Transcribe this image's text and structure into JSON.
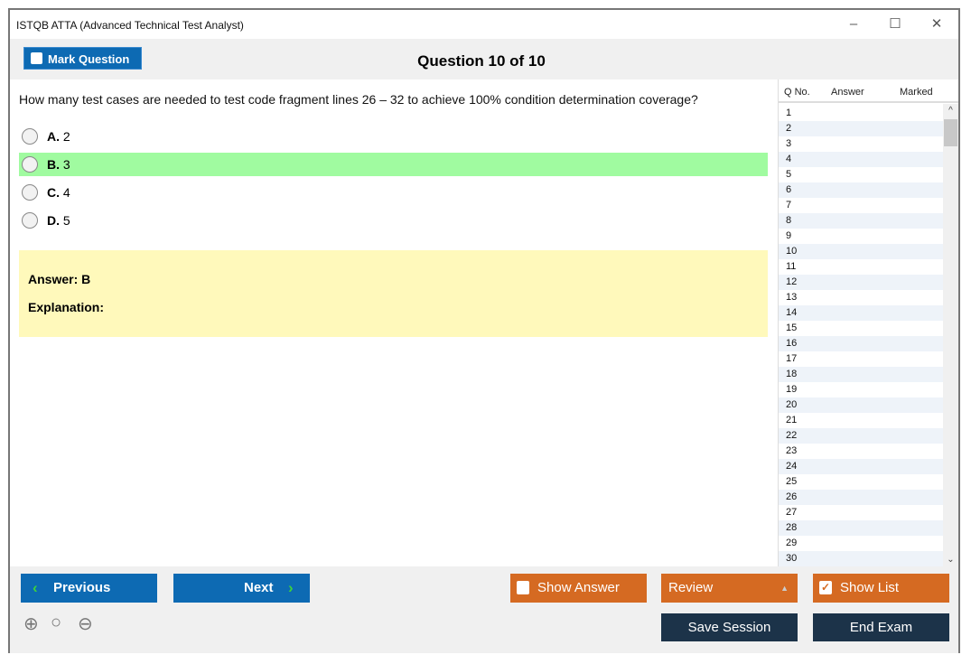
{
  "window": {
    "title": "ISTQB ATTA (Advanced Technical Test Analyst)",
    "minimize": "–",
    "maximize": "☐",
    "close": "✕"
  },
  "toolbar": {
    "mark_label": "Mark Question",
    "question_title": "Question 10 of 10"
  },
  "question": {
    "text": "How many test cases are needed to test code fragment lines 26 – 32 to achieve 100% condition determination coverage?",
    "options": [
      {
        "letter": "A.",
        "text": "2"
      },
      {
        "letter": "B.",
        "text": "3",
        "selected": true
      },
      {
        "letter": "C.",
        "text": "4"
      },
      {
        "letter": "D.",
        "text": "5"
      }
    ]
  },
  "answer": {
    "answer_label": "Answer: B",
    "explanation_label": "Explanation:"
  },
  "list": {
    "headers": {
      "qno": "Q No.",
      "answer": "Answer",
      "marked": "Marked"
    },
    "rows": [
      "1",
      "2",
      "3",
      "4",
      "5",
      "6",
      "7",
      "8",
      "9",
      "10",
      "11",
      "12",
      "13",
      "14",
      "15",
      "16",
      "17",
      "18",
      "19",
      "20",
      "21",
      "22",
      "23",
      "24",
      "25",
      "26",
      "27",
      "28",
      "29",
      "30"
    ]
  },
  "bottom": {
    "previous": "Previous",
    "next": "Next",
    "show_answer": "Show Answer",
    "review": "Review",
    "show_list": "Show List",
    "show_list_checked": true,
    "save_session": "Save Session",
    "end_exam": "End Exam"
  },
  "colors": {
    "blue": "#0d6ab3",
    "orange": "#d56a22",
    "dark": "#1c3349",
    "selected": "#a0fba0",
    "answer_bg": "#fff9bb"
  }
}
